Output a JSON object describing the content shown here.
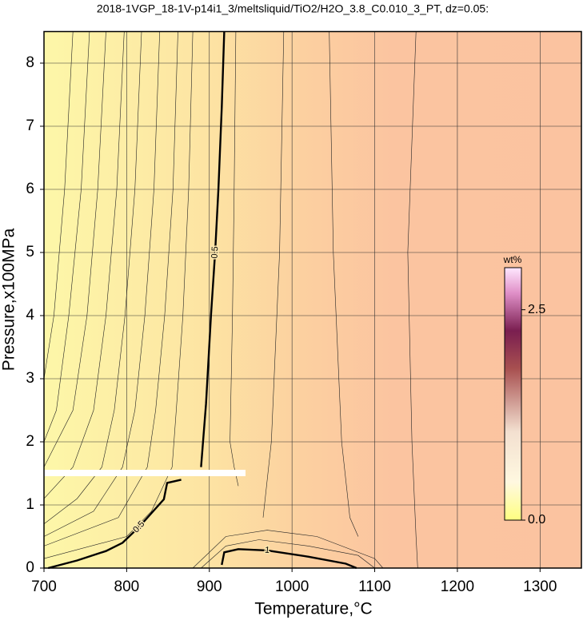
{
  "chart_data": {
    "type": "contour",
    "title": "2018-1VGP_18-1V-p14i1_3/meltsliquid/TiO2/H2O_3.8_C0.010_3_PT, dz=0.05:",
    "x_label": "Temperature,°C",
    "y_label": "Pressure,x100MPa",
    "xlim": [
      700,
      1350
    ],
    "ylim": [
      0,
      8.5
    ],
    "xticks": [
      700,
      800,
      900,
      1000,
      1100,
      1200,
      1300
    ],
    "yticks": [
      0,
      1,
      2,
      3,
      4,
      5,
      6,
      7,
      8
    ],
    "grid": true,
    "colorbar": {
      "label": "wt%",
      "lim": [
        0,
        3
      ],
      "ticks": [
        {
          "value": 0,
          "label": "0.0"
        },
        2.5
      ]
    },
    "labeled_contours": [
      {
        "level": 0.5,
        "x": [
          890,
          896,
          902,
          907,
          911,
          915,
          918
        ],
        "y": [
          1.6,
          2.6,
          4,
          5,
          6,
          7.3,
          8.5
        ]
      },
      {
        "level": 0.5,
        "x": [
          705,
          740,
          775,
          795,
          815,
          845,
          849,
          866
        ],
        "y": [
          0,
          0.12,
          0.27,
          0.4,
          0.65,
          1.09,
          1.35,
          1.4
        ]
      },
      {
        "level": 1,
        "x": [
          915,
          918,
          935,
          970,
          1020,
          1065,
          1078
        ],
        "y": [
          0.05,
          0.25,
          0.3,
          0.28,
          0.18,
          0.07,
          0
        ]
      }
    ],
    "contours": [
      {
        "x": [
          735,
          725,
          712,
          700
        ],
        "y": [
          8.5,
          6,
          4,
          3
        ]
      },
      {
        "x": [
          755,
          745,
          730,
          715,
          700
        ],
        "y": [
          8.5,
          6,
          4,
          2.5,
          2
        ]
      },
      {
        "x": [
          775,
          765,
          752,
          735,
          700
        ],
        "y": [
          8.5,
          6,
          4,
          2.5,
          1.6
        ]
      },
      {
        "x": [
          797,
          788,
          775,
          760,
          735,
          700
        ],
        "y": [
          8.5,
          6,
          4,
          2.5,
          1.6,
          1.1
        ]
      },
      {
        "x": [
          818,
          810,
          798,
          785,
          770,
          740,
          700
        ],
        "y": [
          8.5,
          6,
          4,
          2.5,
          1.6,
          1.1,
          0.7
        ]
      },
      {
        "x": [
          840,
          833,
          822,
          810,
          795,
          760,
          700
        ],
        "y": [
          8.5,
          6,
          4,
          2.5,
          1.6,
          0.9,
          0.5
        ]
      },
      {
        "x": [
          862,
          856,
          846,
          835,
          825,
          790,
          700
        ],
        "y": [
          8.5,
          6,
          4,
          2.5,
          1.6,
          0.8,
          0.35
        ]
      },
      {
        "x": [
          880,
          875,
          868,
          860,
          855,
          830,
          800,
          700
        ],
        "y": [
          8.5,
          6,
          4,
          2.5,
          1.6,
          0.9,
          0.5,
          0.15
        ]
      },
      {
        "x": [
          932,
          930,
          928,
          925,
          930,
          935
        ],
        "y": [
          8.5,
          6,
          4,
          2,
          1.6,
          1.3
        ]
      },
      {
        "x": [
          990,
          985,
          975,
          965
        ],
        "y": [
          8.5,
          5,
          2,
          0.8
        ]
      },
      {
        "x": [
          1045,
          1050,
          1060,
          1070,
          1080
        ],
        "y": [
          8.5,
          5,
          2,
          0.8,
          0.5
        ]
      },
      {
        "x": [
          1150,
          1140,
          1145,
          1150,
          1152
        ],
        "y": [
          8.5,
          5,
          2,
          0.5,
          0
        ]
      },
      {
        "x": [
          890,
          920,
          960,
          1020,
          1080,
          1100
        ],
        "y": [
          0,
          0.35,
          0.45,
          0.35,
          0.2,
          0
        ]
      },
      {
        "x": [
          880,
          920,
          970,
          1030,
          1100,
          1110
        ],
        "y": [
          0,
          0.5,
          0.6,
          0.5,
          0.15,
          0
        ]
      }
    ]
  }
}
